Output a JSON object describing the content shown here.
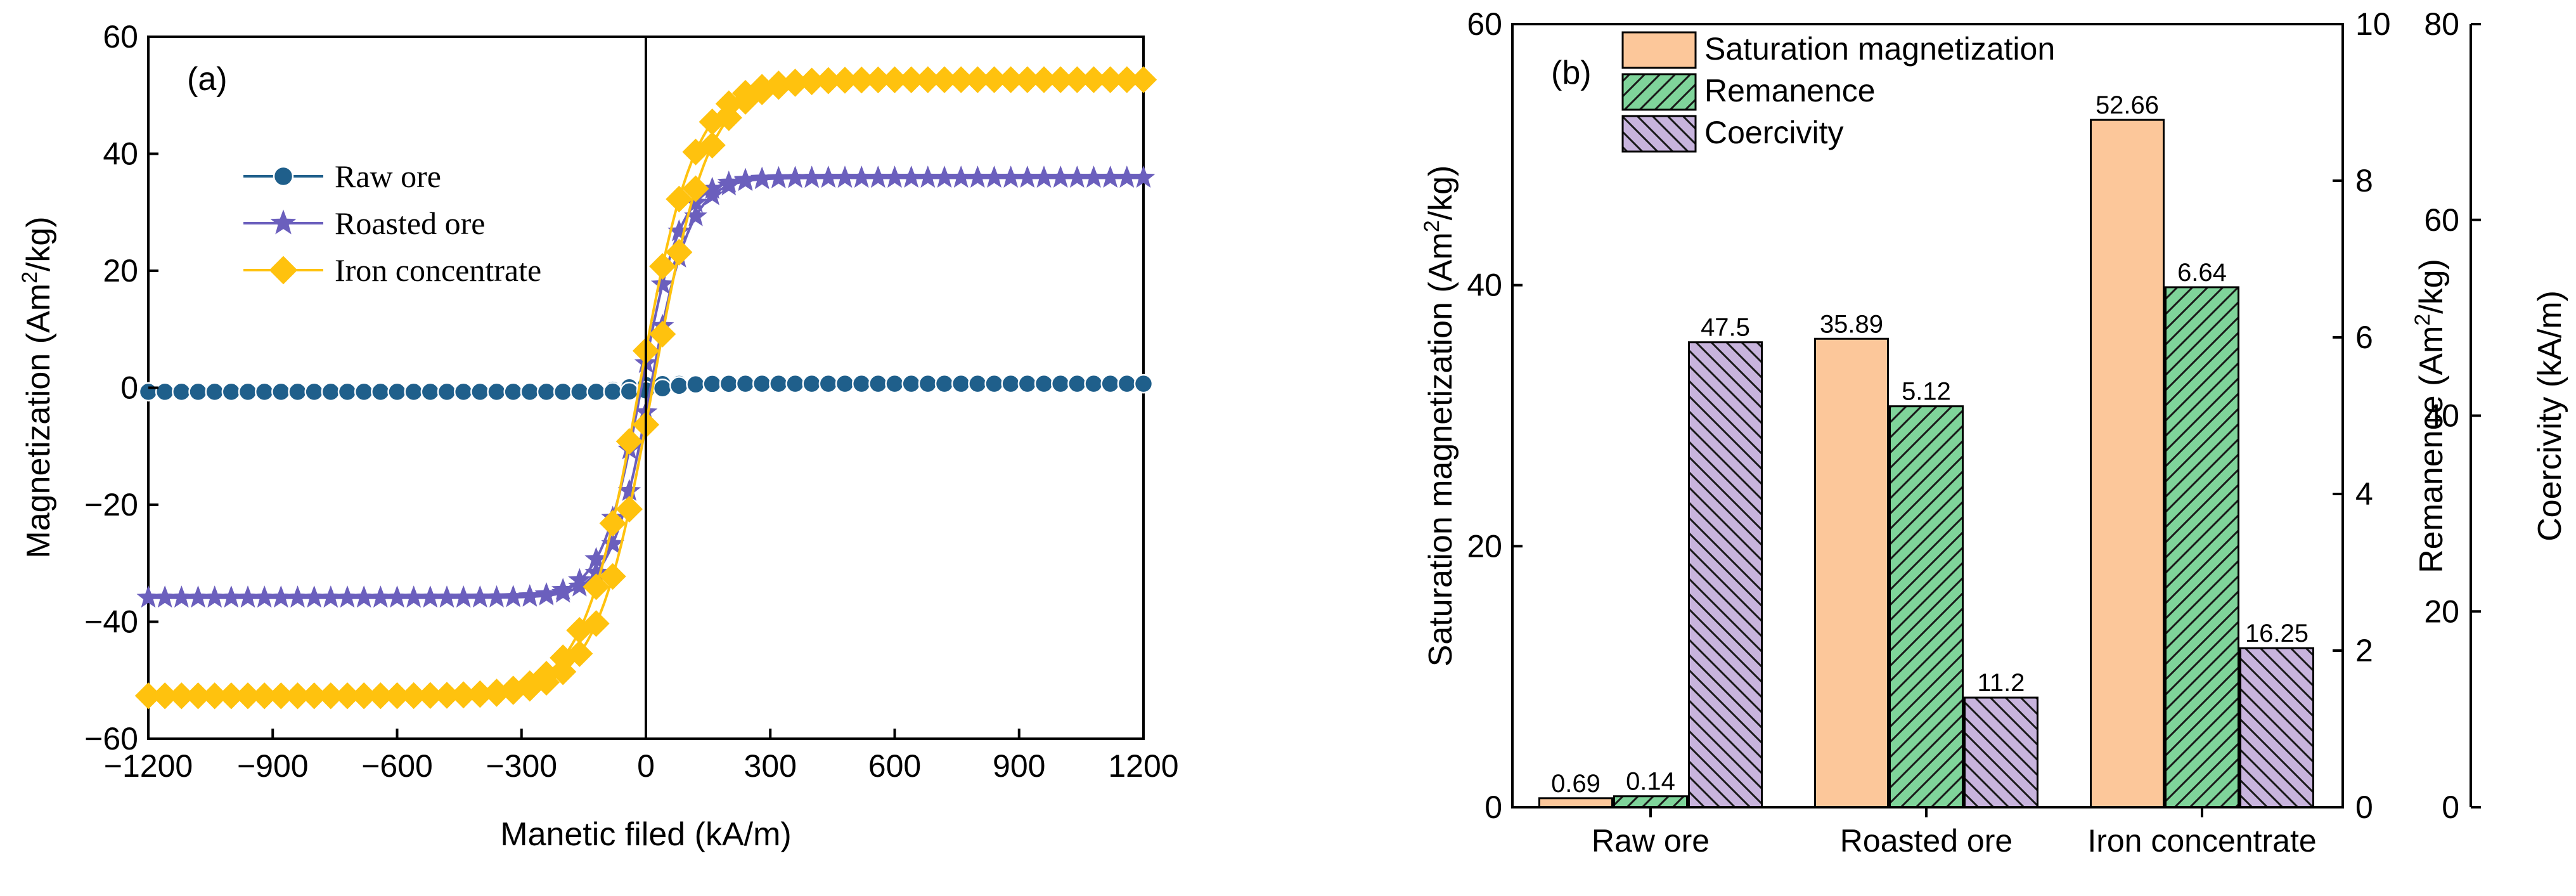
{
  "chart_data": [
    {
      "type": "line",
      "panel_label": "(a)",
      "xlabel": "Manetic filed (kA/m)",
      "ylabel": "Magnetization (Am²/kg)",
      "ylabel_parts": {
        "pre": "Magnetization (Am",
        "sup": "2",
        "post": "/kg)"
      },
      "xlim": [
        -1200,
        1200
      ],
      "ylim": [
        -60,
        60
      ],
      "xticks": [
        -1200,
        -900,
        -600,
        -300,
        0,
        300,
        600,
        900,
        1200
      ],
      "xtick_labels": [
        "−1200",
        "−900",
        "−600",
        "−300",
        "0",
        "300",
        "600",
        "900",
        "1200"
      ],
      "yticks": [
        -60,
        -40,
        -20,
        0,
        20,
        40,
        60
      ],
      "ytick_labels": [
        "−60",
        "−40",
        "−20",
        "0",
        "20",
        "40",
        "60"
      ],
      "legend_position": "upper-left",
      "series": [
        {
          "name": "Raw ore",
          "color": "#1f5f8b",
          "marker": "circle",
          "ms": 0.69,
          "coercivity": 47.5,
          "width": 60
        },
        {
          "name": "Roasted ore",
          "color": "#6b5fbd",
          "marker": "star",
          "ms": 35.89,
          "coercivity": 11.2,
          "width": 95
        },
        {
          "name": "Iron concentrate",
          "color": "#ffc20e",
          "marker": "diamond",
          "ms": 52.66,
          "coercivity": 16.25,
          "width": 135
        }
      ]
    },
    {
      "type": "bar",
      "panel_label": "(b)",
      "categories": [
        "Raw ore",
        "Roasted ore",
        "Iron concentrate"
      ],
      "series": [
        {
          "name": "Saturation magnetization",
          "axis": "left",
          "values": [
            0.69,
            35.89,
            52.66
          ],
          "labels": [
            "0.69",
            "35.89",
            "52.66"
          ],
          "color": "#fcc79a",
          "hatch": "none"
        },
        {
          "name": "Remanence",
          "axis": "right1",
          "values": [
            0.14,
            5.12,
            6.64
          ],
          "labels": [
            "0.14",
            "5.12",
            "6.64"
          ],
          "color": "#7fd49a",
          "hatch": "forward"
        },
        {
          "name": "Coercivity",
          "axis": "right2",
          "values": [
            47.5,
            11.2,
            16.25
          ],
          "labels": [
            "47.5",
            "11.2",
            "16.25"
          ],
          "color": "#c8b4dd",
          "hatch": "backward"
        }
      ],
      "ylabel_left": "Saturation magnetization (Am²/kg)",
      "ylabel_left_parts": {
        "pre": "Saturation magnetization (Am",
        "sup": "2",
        "post": "/kg)"
      },
      "ylabel_right1": "Remanence (Am²/kg)",
      "ylabel_right1_parts": {
        "pre": "Remanence (Am",
        "sup": "2",
        "post": "/kg)"
      },
      "ylabel_right2": "Coercivity (kA/m)",
      "ylim_left": [
        0,
        60
      ],
      "ylim_right1": [
        0,
        10
      ],
      "ylim_right2": [
        0,
        80
      ],
      "yticks_left": [
        0,
        20,
        40,
        60
      ],
      "yticks_right1": [
        0,
        2,
        4,
        6,
        8,
        10
      ],
      "yticks_right2": [
        0,
        20,
        40,
        60,
        80
      ],
      "legend_position": "upper-left"
    }
  ]
}
